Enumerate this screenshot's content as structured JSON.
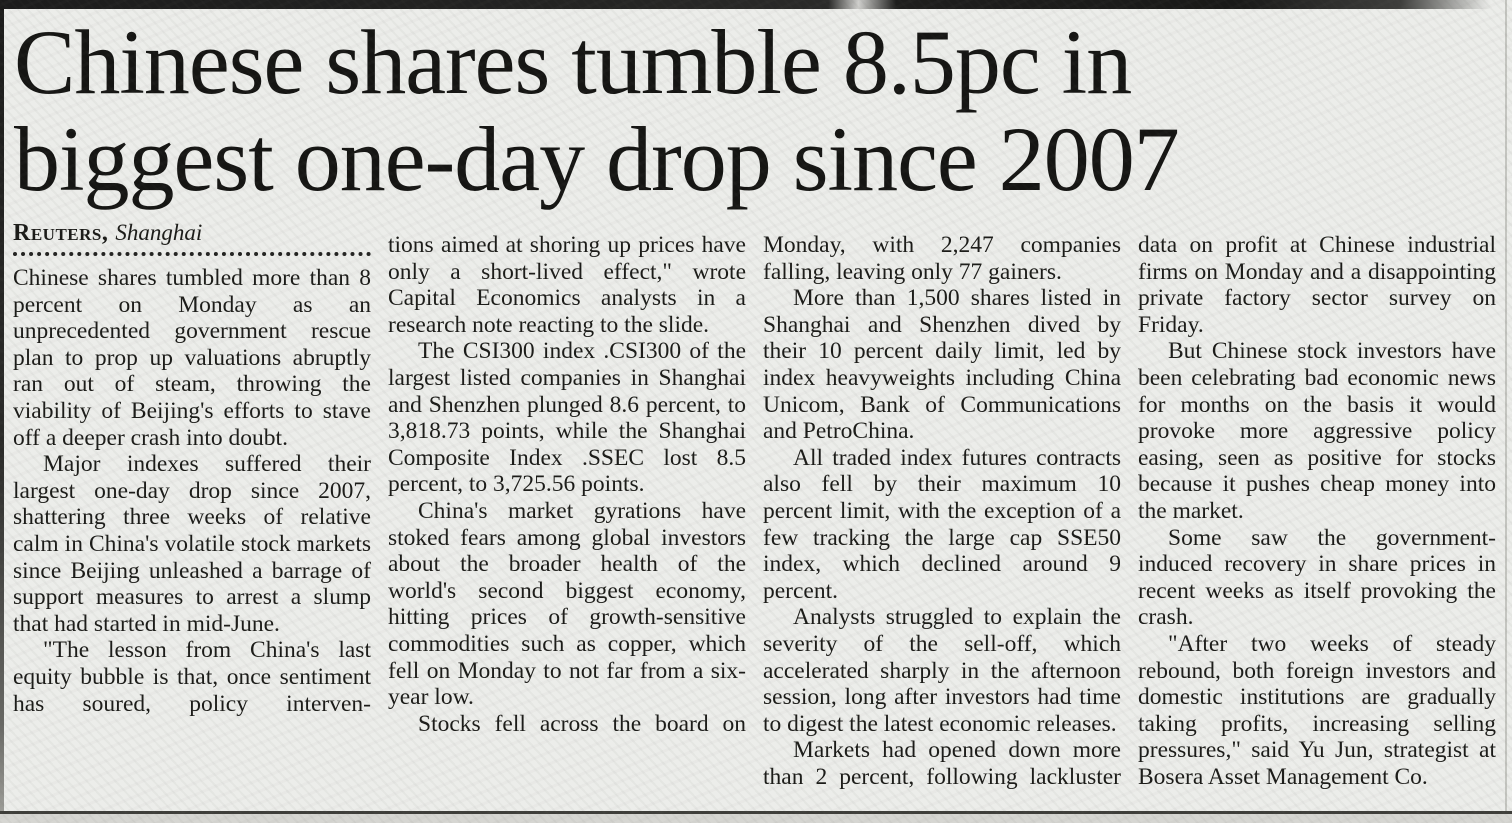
{
  "article": {
    "headline_lines": [
      "Chinese shares tumble 8.5pc in",
      "biggest one-day drop since 2007"
    ],
    "byline": {
      "source": "Reuters,",
      "location": "Shanghai"
    },
    "columns": [
      {
        "paragraphs": [
          "Chinese shares tumbled more than 8 percent on Monday as an unprecedented government rescue plan to prop up valuations abruptly ran out of steam, throwing the viability of Beijing's efforts to stave off a deeper crash into doubt.",
          "Major indexes suffered their largest one-day drop since 2007, shattering three weeks of relative calm in China's volatile stock markets since Beijing unleashed a barrage of support measures to arrest a slump that had started in mid-June.",
          "\"The lesson from China's last equity bubble is that, once sentiment has soured, policy interven-"
        ]
      },
      {
        "paragraphs": [
          "tions aimed at shoring up prices have only a short-lived effect,\" wrote Capital Economics analysts in a research note reacting to the slide.",
          "The CSI300 index .CSI300 of the largest listed companies in Shanghai and Shenzhen plunged 8.6 percent, to 3,818.73 points, while the Shanghai Composite Index .SSEC lost 8.5 percent, to 3,725.56 points.",
          "China's market gyrations have stoked fears among global investors about the broader health of the world's second biggest economy, hitting prices of growth-sensitive commodities such as copper, which fell on Monday to not far from a six-year low.",
          "Stocks fell across the board on"
        ]
      },
      {
        "paragraphs": [
          "Monday, with 2,247 companies falling, leaving only 77 gainers.",
          "More than 1,500 shares listed in Shanghai and Shenzhen dived by their 10 percent daily limit, led by index heavyweights including China Unicom, Bank of Communications and PetroChina.",
          "All traded index futures contracts also fell by their maximum 10 percent limit, with the exception of a few tracking the large cap SSE50 index, which declined around 9 percent.",
          "Analysts struggled to explain the severity of the sell-off, which accelerated sharply in the afternoon session, long after investors had time to digest the latest economic releases.",
          "Markets had opened down more than 2 percent, following lackluster"
        ]
      },
      {
        "paragraphs": [
          "data on profit at Chinese industrial firms on Monday and a disappointing private factory sector survey on Friday.",
          "But Chinese stock investors have been celebrating bad economic news for months on the basis it would provoke more aggressive policy easing, seen as positive for stocks because it pushes cheap money into the market.",
          "Some saw the government-induced recovery in share prices in recent weeks as itself provoking the crash.",
          "\"After two weeks of steady rebound, both foreign investors and domestic institutions are gradually taking profits, increasing selling pressures,\" said Yu Jun, strategist at Bosera Asset Management Co."
        ]
      }
    ]
  },
  "colors": {
    "page_background": "#ecedea",
    "ink": "#1b1b18",
    "scan_edge": "#1c1c1c",
    "bottom_rule": "#3e3e3a"
  }
}
